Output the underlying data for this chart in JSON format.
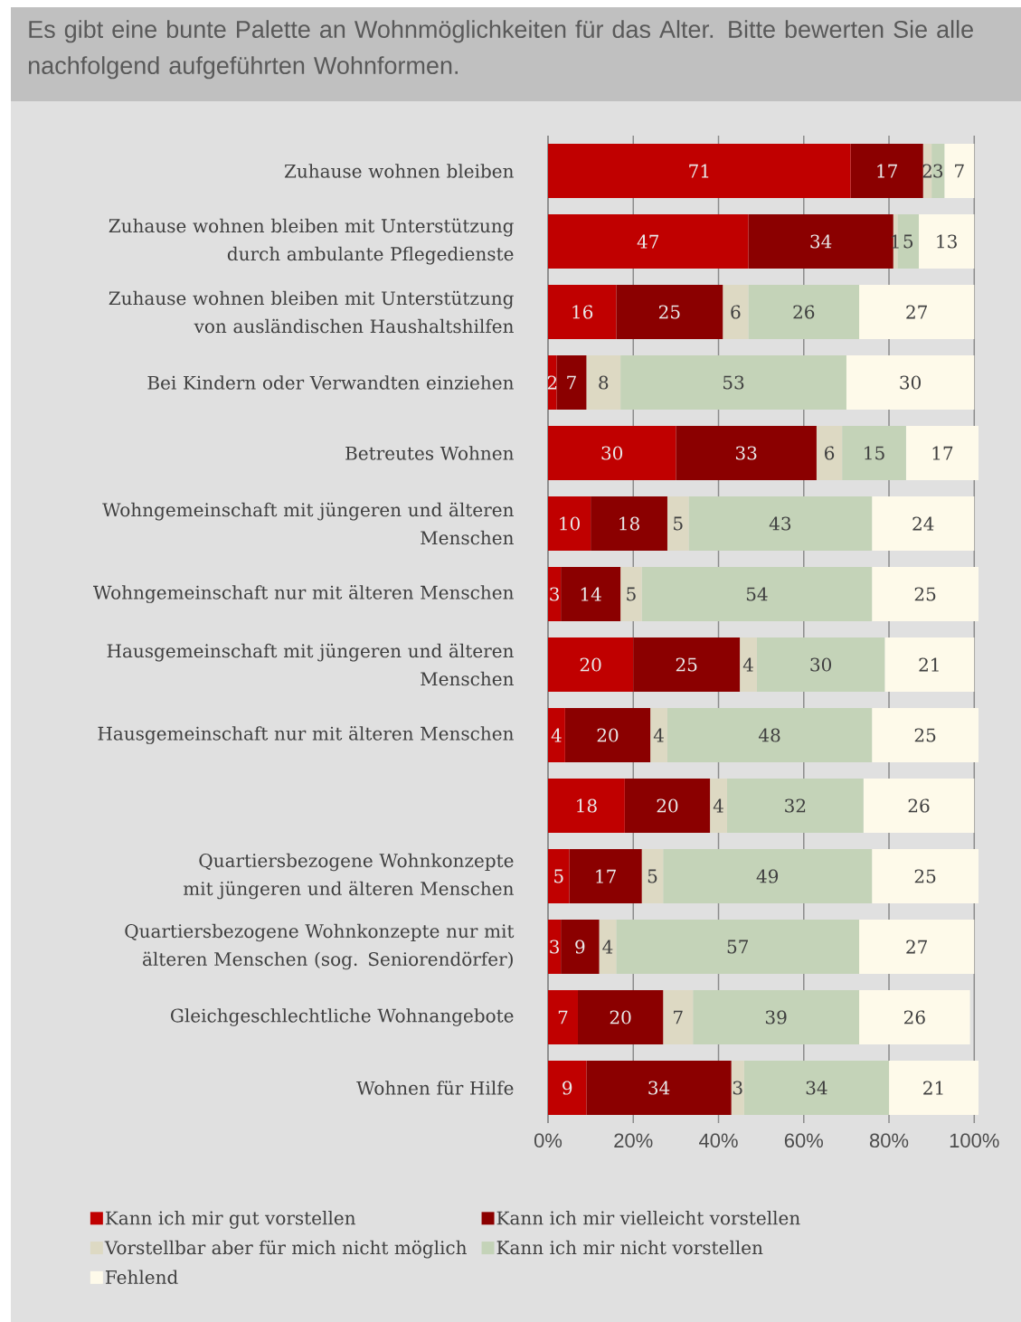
{
  "chart_data": {
    "type": "bar",
    "orientation": "horizontal",
    "stacked": true,
    "title": "Es gibt eine bunte Palette an Wohnmöglichkeiten für das Alter. Bitte bewerten Sie alle nachfolgend aufgeführten Wohnformen.",
    "categories": [
      "Zuhause wohnen bleiben",
      "Zuhause wohnen bleiben mit Unterstützung durch ambulante Pflegedienste",
      "Zuhause wohnen bleiben mit Unterstützung von ausländischen Haushaltshilfen",
      "Bei Kindern oder Verwandten einziehen",
      "Betreutes Wohnen",
      "Wohngemeinschaft mit jüngeren und älteren Menschen",
      "Wohngemeinschaft nur mit älteren Menschen",
      "Hausgemeinschaft mit jüngeren und älteren Menschen",
      "Hausgemeinschaft nur mit älteren Menschen",
      null,
      "Quartiersbezogene Wohnkonzepte mit jüngeren und älteren Menschen",
      "Quartiersbezogene Wohnkonzepte nur mit älteren Menschen (sog. Seniorendörfer)",
      "Gleichgeschlechtliche Wohnangebote",
      "Wohnen für Hilfe"
    ],
    "series": [
      {
        "name": "Kann ich mir gut vorstellen",
        "color": "#c00000",
        "values": [
          71,
          47,
          16,
          2,
          30,
          10,
          3,
          20,
          4,
          18,
          5,
          3,
          7,
          9
        ]
      },
      {
        "name": "Kann ich mir vielleicht vorstellen",
        "color": "#8b0000",
        "values": [
          17,
          34,
          25,
          7,
          33,
          18,
          14,
          25,
          20,
          20,
          17,
          9,
          20,
          34
        ]
      },
      {
        "name": "Vorstellbar aber für mich nicht möglich",
        "color": "#ddd9c3",
        "values": [
          2,
          1,
          6,
          8,
          6,
          5,
          5,
          4,
          4,
          4,
          5,
          4,
          7,
          3
        ]
      },
      {
        "name": "Kann ich mir nicht vorstellen",
        "color": "#c4d3b8",
        "values": [
          3,
          5,
          26,
          53,
          15,
          43,
          54,
          30,
          48,
          32,
          49,
          57,
          39,
          34
        ]
      },
      {
        "name": "Fehlend",
        "color": "#fefaea",
        "values": [
          7,
          13,
          27,
          30,
          17,
          24,
          25,
          21,
          25,
          26,
          25,
          27,
          26,
          21
        ]
      }
    ],
    "xlim": [
      0,
      101
    ],
    "xticks": [
      {
        "value": 0,
        "label": "0%"
      },
      {
        "value": 20,
        "label": "20%"
      },
      {
        "value": 40,
        "label": "40%"
      },
      {
        "value": 60,
        "label": "60%"
      },
      {
        "value": 80,
        "label": "80%"
      },
      {
        "value": 100,
        "label": "100%"
      }
    ],
    "grid": "x",
    "legend": "bottom",
    "data_labels": true
  }
}
